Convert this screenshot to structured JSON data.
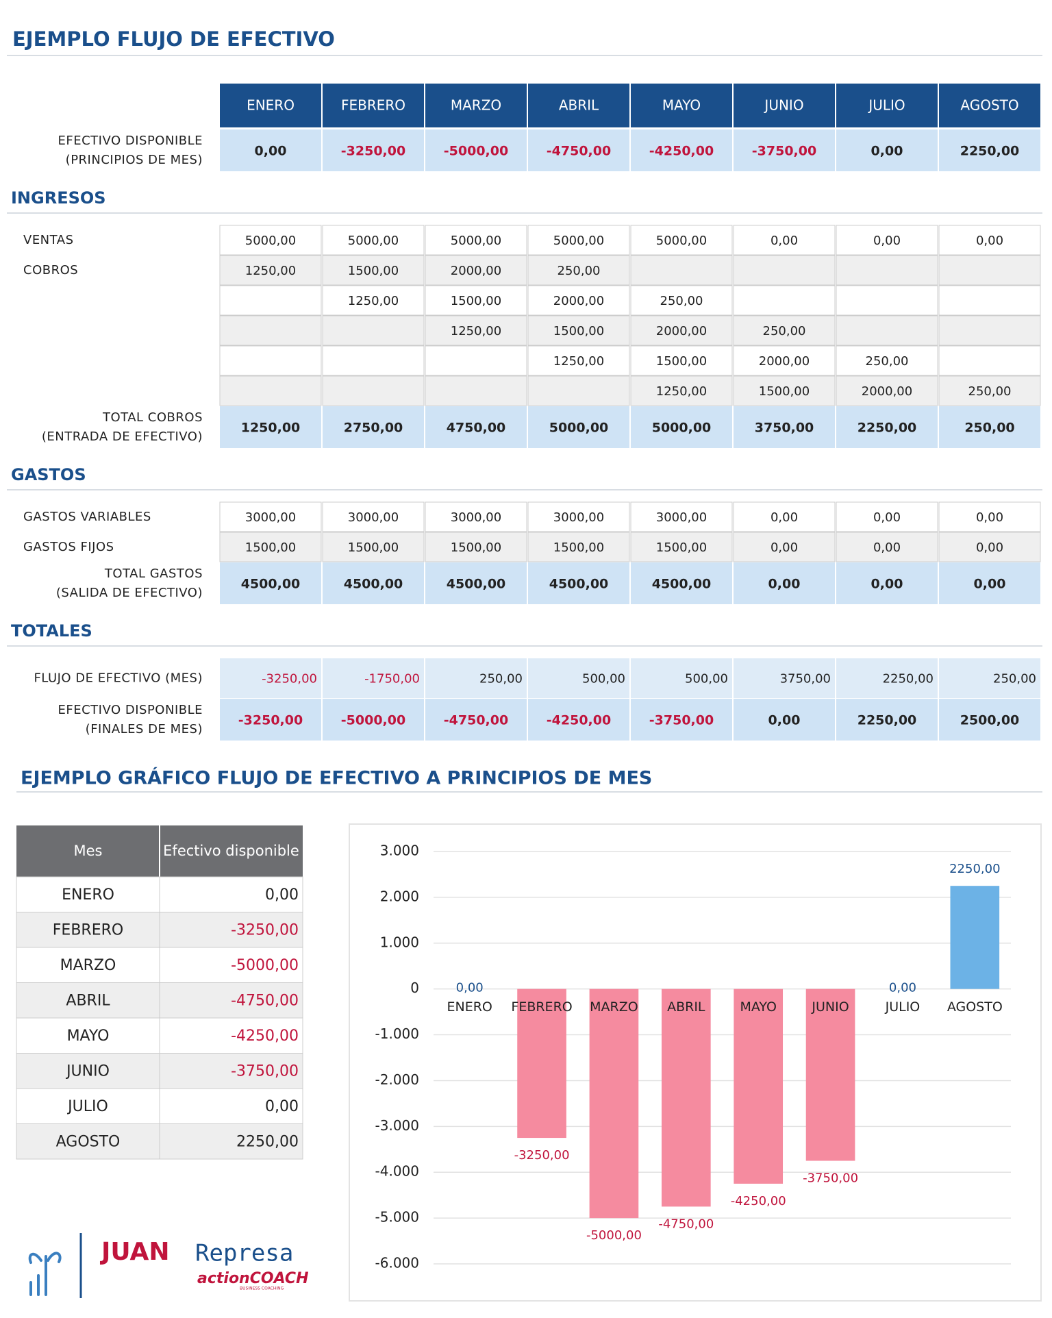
{
  "title": "EJEMPLO FLUJO DE EFECTIVO",
  "main_table": {
    "months": [
      "ENERO",
      "FEBRERO",
      "MARZO",
      "ABRIL",
      "MAYO",
      "JUNIO",
      "JULIO",
      "AGOSTO"
    ],
    "rows": [
      {
        "style": "total",
        "label": [
          "EFECTIVO DISPONIBLE",
          "(PRINCIPIOS DE MES)"
        ],
        "cells": [
          "0,00",
          "-3250,00",
          "-5000,00",
          "-4750,00",
          "-4250,00",
          "-3750,00",
          "0,00",
          "2250,00"
        ]
      },
      {
        "section": "INGRESOS"
      },
      {
        "style": "plain",
        "label": [
          "VENTAS"
        ],
        "cells": [
          "5000,00",
          "5000,00",
          "5000,00",
          "5000,00",
          "5000,00",
          "0,00",
          "0,00",
          "0,00"
        ]
      },
      {
        "style": "plain",
        "label": [
          "COBROS"
        ],
        "cells": [
          "1250,00",
          "1500,00",
          "2000,00",
          "250,00",
          null,
          null,
          null,
          null
        ]
      },
      {
        "style": "plain",
        "label": [],
        "cells": [
          null,
          "1250,00",
          "1500,00",
          "2000,00",
          "250,00",
          null,
          null,
          null
        ]
      },
      {
        "style": "plain",
        "label": [],
        "cells": [
          null,
          null,
          "1250,00",
          "1500,00",
          "2000,00",
          "250,00",
          null,
          null
        ]
      },
      {
        "style": "plain",
        "label": [],
        "cells": [
          null,
          null,
          null,
          "1250,00",
          "1500,00",
          "2000,00",
          "250,00",
          null
        ]
      },
      {
        "style": "plain",
        "label": [],
        "cells": [
          null,
          null,
          null,
          null,
          "1250,00",
          "1500,00",
          "2000,00",
          "250,00"
        ]
      },
      {
        "style": "total",
        "label": [
          "TOTAL COBROS",
          "(ENTRADA DE EFECTIVO)"
        ],
        "cells": [
          "1250,00",
          "2750,00",
          "4750,00",
          "5000,00",
          "5000,00",
          "3750,00",
          "2250,00",
          "250,00"
        ]
      },
      {
        "section": "GASTOS"
      },
      {
        "style": "plain",
        "label": [
          "GASTOS VARIABLES"
        ],
        "cells": [
          "3000,00",
          "3000,00",
          "3000,00",
          "3000,00",
          "3000,00",
          "0,00",
          "0,00",
          "0,00"
        ]
      },
      {
        "style": "plain",
        "label": [
          "GASTOS FIJOS"
        ],
        "cells": [
          "1500,00",
          "1500,00",
          "1500,00",
          "1500,00",
          "1500,00",
          "0,00",
          "0,00",
          "0,00"
        ]
      },
      {
        "style": "total",
        "label": [
          "TOTAL GASTOS",
          "(SALIDA DE EFECTIVO)"
        ],
        "cells": [
          "4500,00",
          "4500,00",
          "4500,00",
          "4500,00",
          "4500,00",
          "0,00",
          "0,00",
          "0,00"
        ]
      },
      {
        "section": "TOTALES"
      },
      {
        "style": "flow",
        "label": [
          "FLUJO DE EFECTIVO (MES)"
        ],
        "cells": [
          "-3250,00",
          "-1750,00",
          "250,00",
          "500,00",
          "500,00",
          "3750,00",
          "2250,00",
          "250,00"
        ]
      },
      {
        "style": "total",
        "label": [
          "EFECTIVO DISPONIBLE",
          "(FINALES DE MES)"
        ],
        "cells": [
          "-3250,00",
          "-5000,00",
          "-4750,00",
          "-4250,00",
          "-3750,00",
          "0,00",
          "2250,00",
          "2500,00"
        ]
      }
    ]
  },
  "chart_section_title": "EJEMPLO GRÁFICO FLUJO DE EFECTIVO A PRINCIPIOS DE MES",
  "summary_table": {
    "header": [
      "Mes",
      "Efectivo disponible"
    ],
    "rows": [
      [
        "ENERO",
        "0,00"
      ],
      [
        "FEBRERO",
        "-3250,00"
      ],
      [
        "MARZO",
        "-5000,00"
      ],
      [
        "ABRIL",
        "-4750,00"
      ],
      [
        "MAYO",
        "-4250,00"
      ],
      [
        "JUNIO",
        "-3750,00"
      ],
      [
        "JULIO",
        "0,00"
      ],
      [
        "AGOSTO",
        "2250,00"
      ]
    ]
  },
  "chart_data": {
    "type": "bar",
    "categories": [
      "ENERO",
      "FEBRERO",
      "MARZO",
      "ABRIL",
      "MAYO",
      "JUNIO",
      "JULIO",
      "AGOSTO"
    ],
    "values": [
      0,
      -3250,
      -5000,
      -4750,
      -4250,
      -3750,
      0,
      2250
    ],
    "value_labels": [
      "0,00",
      "-3250,00",
      "-5000,00",
      "-4750,00",
      "-4250,00",
      "-3750,00",
      "0,00",
      "2250,00"
    ],
    "color": "#6cb2e6",
    "negative_color": "#f58b9f",
    "ylim": [
      -6000,
      3000
    ],
    "yticks": [
      {
        "value": -6000,
        "label": "-6.000"
      },
      {
        "value": -5000,
        "label": "-5.000"
      },
      {
        "value": -4000,
        "label": "-4.000"
      },
      {
        "value": -3000,
        "label": "-3.000"
      },
      {
        "value": -2000,
        "label": "-2.000"
      },
      {
        "value": -1000,
        "label": "-1.000"
      },
      0,
      {
        "value": 1000,
        "label": "1.000"
      },
      {
        "value": 2000,
        "label": "2.000"
      },
      {
        "value": 3000,
        "label": "3.000"
      }
    ],
    "grid": true
  },
  "logo": {
    "name_first": "JUAN",
    "name_last": "Represa",
    "brand": "actionCOACH",
    "tagline": "BUSINESS COACHING"
  }
}
